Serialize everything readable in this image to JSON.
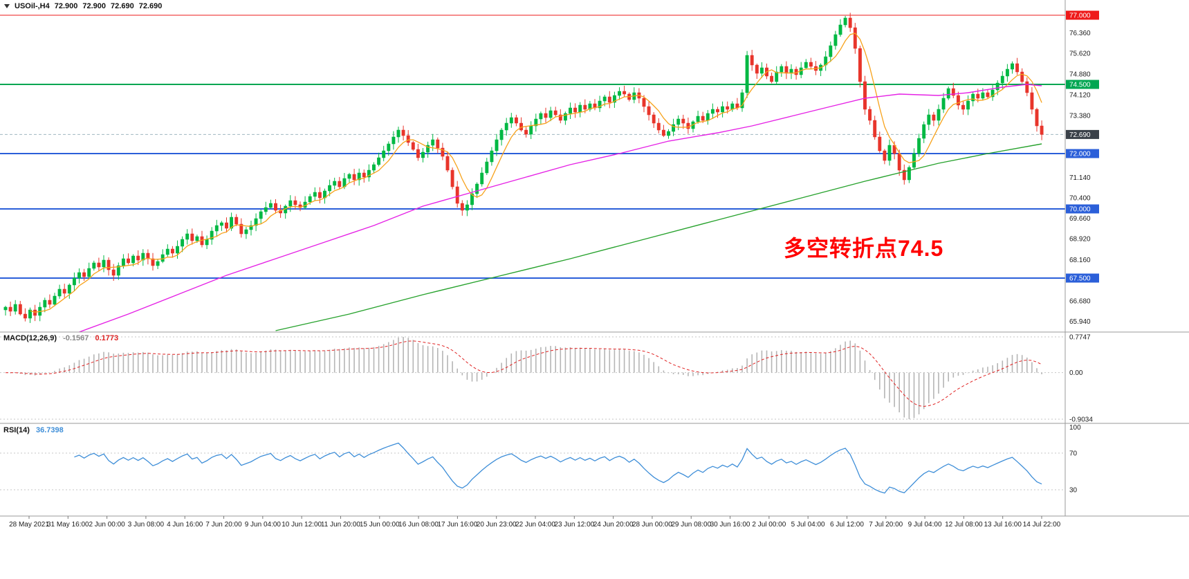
{
  "header": {
    "symbol": "USOil-,H4",
    "ohlc": [
      "72.900",
      "72.900",
      "72.690",
      "72.690"
    ]
  },
  "annotation": {
    "text": "多空转折点74.5",
    "color": "#ff0000"
  },
  "macd_panel": {
    "title": "MACD(12,26,9)",
    "main_value": "-0.1567",
    "signal_value": "0.1773",
    "axis_labels": [
      "0.7747",
      "0.00",
      "-0.9034"
    ]
  },
  "rsi_panel": {
    "title": "RSI(14)",
    "value": "36.7398",
    "axis_labels": [
      "100",
      "70",
      "30"
    ],
    "levels": [
      70,
      30
    ]
  },
  "price_axis": [
    {
      "label": "76.360",
      "value": 76.36
    },
    {
      "label": "75.620",
      "value": 75.62
    },
    {
      "label": "74.880",
      "value": 74.88
    },
    {
      "label": "74.120",
      "value": 74.12
    },
    {
      "label": "73.380",
      "value": 73.38
    },
    {
      "label": "71.140",
      "value": 71.14
    },
    {
      "label": "70.400",
      "value": 70.4
    },
    {
      "label": "69.660",
      "value": 69.66
    },
    {
      "label": "68.920",
      "value": 68.92
    },
    {
      "label": "68.160",
      "value": 68.16
    },
    {
      "label": "66.680",
      "value": 66.68
    },
    {
      "label": "65.940",
      "value": 65.94
    }
  ],
  "hlines": [
    {
      "price": 77.0,
      "label": "77.000",
      "color": "#ee1a1a",
      "badge": "#ee1a1a",
      "width": 1,
      "dash": ""
    },
    {
      "price": 74.5,
      "label": "74.500",
      "color": "#00a651",
      "badge": "#00a651",
      "width": 2,
      "dash": ""
    },
    {
      "price": 72.69,
      "label": "72.690",
      "color": "#9fb6c0",
      "badge": "#3a4149",
      "width": 1,
      "dash": "4,3"
    },
    {
      "price": 72.0,
      "label": "72.000",
      "color": "#2b5fd9",
      "badge": "#2b5fd9",
      "width": 2,
      "dash": ""
    },
    {
      "price": 70.0,
      "label": "70.000",
      "color": "#2b5fd9",
      "badge": "#2b5fd9",
      "width": 2,
      "dash": ""
    },
    {
      "price": 67.5,
      "label": "67.500",
      "color": "#2b5fd9",
      "badge": "#2b5fd9",
      "width": 2,
      "dash": ""
    }
  ],
  "time_axis": [
    "28 May 2021",
    "31 May 16:00",
    "2 Jun 00:00",
    "3 Jun 08:00",
    "4 Jun 16:00",
    "7 Jun 20:00",
    "9 Jun 04:00",
    "10 Jun 12:00",
    "11 Jun 20:00",
    "15 Jun 00:00",
    "16 Jun 08:00",
    "17 Jun 16:00",
    "20 Jun 23:00",
    "22 Jun 04:00",
    "23 Jun 12:00",
    "24 Jun 20:00",
    "28 Jun 00:00",
    "29 Jun 08:00",
    "30 Jun 16:00",
    "2 Jul 00:00",
    "5 Jul 04:00",
    "6 Jul 12:00",
    "7 Jul 20:00",
    "9 Jul 04:00",
    "12 Jul 08:00",
    "13 Jul 16:00",
    "14 Jul 22:00"
  ],
  "chart_data": {
    "type": "candlestick",
    "symbol": "USOil",
    "timeframe": "H4",
    "title": "USOil-,H4 72.900 72.900 72.690 72.690",
    "ylim": [
      65.55,
      77.35
    ],
    "grid": false,
    "closes": [
      66.45,
      66.3,
      66.55,
      66.2,
      66.05,
      66.35,
      66.15,
      66.45,
      66.7,
      66.55,
      66.85,
      67.1,
      66.95,
      67.25,
      67.5,
      67.7,
      67.55,
      67.85,
      68.05,
      67.9,
      68.15,
      67.8,
      67.6,
      67.95,
      68.2,
      68.05,
      68.3,
      68.15,
      68.4,
      68.2,
      67.95,
      68.1,
      68.35,
      68.55,
      68.4,
      68.65,
      68.9,
      69.1,
      68.85,
      69.0,
      68.7,
      68.9,
      69.2,
      69.4,
      69.5,
      69.3,
      69.7,
      69.45,
      69.1,
      69.25,
      69.4,
      69.65,
      69.9,
      70.05,
      70.2,
      69.95,
      69.85,
      70.1,
      70.3,
      70.15,
      70.05,
      70.25,
      70.45,
      70.6,
      70.4,
      70.65,
      70.85,
      71.0,
      70.8,
      71.1,
      71.25,
      71.05,
      71.3,
      71.15,
      71.4,
      71.6,
      71.85,
      72.1,
      72.35,
      72.6,
      72.85,
      72.65,
      72.4,
      72.15,
      71.85,
      72.05,
      72.3,
      72.5,
      72.2,
      71.9,
      71.4,
      70.8,
      70.2,
      69.95,
      70.15,
      70.55,
      70.9,
      71.3,
      71.7,
      72.1,
      72.5,
      72.85,
      73.1,
      73.3,
      73.1,
      72.85,
      72.7,
      73.0,
      73.25,
      73.45,
      73.3,
      73.55,
      73.4,
      73.2,
      73.45,
      73.65,
      73.5,
      73.75,
      73.6,
      73.8,
      73.65,
      73.9,
      74.05,
      73.85,
      74.1,
      74.25,
      74.15,
      73.95,
      74.2,
      74.0,
      73.7,
      73.4,
      73.1,
      72.85,
      72.65,
      72.8,
      73.05,
      73.25,
      73.1,
      72.9,
      73.15,
      73.35,
      73.2,
      73.45,
      73.6,
      73.5,
      73.7,
      73.6,
      73.8,
      73.65,
      74.2,
      75.55,
      75.2,
      74.9,
      75.1,
      74.8,
      74.6,
      74.95,
      75.15,
      74.9,
      75.05,
      74.85,
      75.1,
      75.3,
      75.15,
      75.0,
      75.2,
      75.5,
      75.9,
      76.3,
      76.65,
      76.9,
      76.55,
      75.8,
      74.6,
      73.6,
      73.2,
      72.6,
      72.1,
      71.75,
      72.3,
      72.0,
      71.4,
      71.05,
      71.5,
      72.0,
      72.55,
      73.05,
      73.4,
      73.2,
      73.6,
      74.0,
      74.35,
      74.1,
      73.75,
      73.6,
      73.9,
      74.15,
      74.0,
      74.2,
      74.05,
      74.3,
      74.55,
      74.8,
      75.05,
      75.25,
      74.95,
      74.6,
      74.2,
      73.6,
      73.0,
      72.69
    ],
    "ma_fast_period": 6,
    "ma_mid_waypoints": [
      [
        15,
        65.55
      ],
      [
        25,
        66.2
      ],
      [
        35,
        66.9
      ],
      [
        45,
        67.6
      ],
      [
        55,
        68.2
      ],
      [
        65,
        68.8
      ],
      [
        75,
        69.4
      ],
      [
        85,
        70.1
      ],
      [
        95,
        70.6
      ],
      [
        105,
        71.1
      ],
      [
        115,
        71.6
      ],
      [
        125,
        72.0
      ],
      [
        135,
        72.45
      ],
      [
        145,
        72.75
      ],
      [
        152,
        73.0
      ],
      [
        160,
        73.35
      ],
      [
        168,
        73.7
      ],
      [
        175,
        74.0
      ],
      [
        182,
        74.15
      ],
      [
        190,
        74.1
      ],
      [
        196,
        74.2
      ],
      [
        203,
        74.4
      ],
      [
        208,
        74.5
      ],
      [
        211,
        74.45
      ]
    ],
    "ma_slow_waypoints": [
      [
        55,
        65.6
      ],
      [
        70,
        66.2
      ],
      [
        85,
        66.9
      ],
      [
        100,
        67.55
      ],
      [
        115,
        68.2
      ],
      [
        130,
        68.9
      ],
      [
        145,
        69.6
      ],
      [
        160,
        70.3
      ],
      [
        175,
        71.0
      ],
      [
        190,
        71.65
      ],
      [
        200,
        72.0
      ],
      [
        211,
        72.35
      ]
    ],
    "colors": {
      "up": "#00b843",
      "down": "#e8352b",
      "ma_fast": "#f7a21b",
      "ma_mid": "#e522e5",
      "ma_slow": "#27a22d",
      "rsi": "#3e8ed8",
      "macd_hist": "#b5b5b5",
      "macd_signal": "#e02020",
      "level_77": "#ee1a1a",
      "level_74_5": "#00a651",
      "support_blue": "#2b5fd9"
    }
  }
}
